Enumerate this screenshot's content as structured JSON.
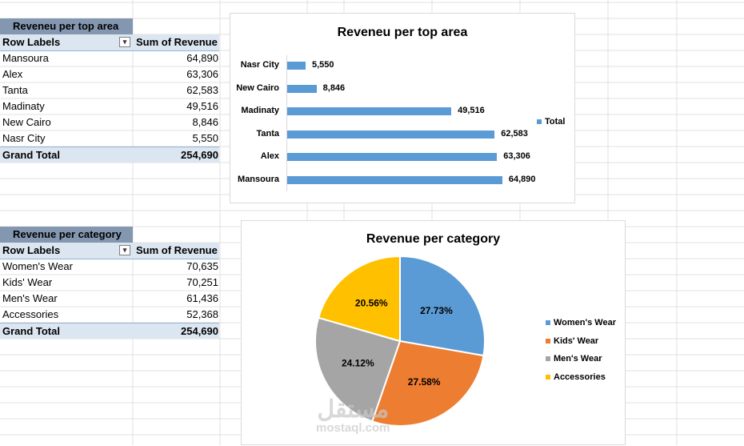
{
  "area_table": {
    "title": "Reveneu per top area",
    "header_label": "Row Labels",
    "header_value": "Sum of Revenue",
    "rows": [
      {
        "label": "Mansoura",
        "value": "64,890"
      },
      {
        "label": "Alex",
        "value": "63,306"
      },
      {
        "label": "Tanta",
        "value": "62,583"
      },
      {
        "label": "Madinaty",
        "value": "49,516"
      },
      {
        "label": "New Cairo",
        "value": "8,846"
      },
      {
        "label": "Nasr City",
        "value": "5,550"
      }
    ],
    "total_label": "Grand Total",
    "total_value": "254,690"
  },
  "category_table": {
    "title": "Revenue per category",
    "header_label": "Row Labels",
    "header_value": "Sum of Revenue",
    "rows": [
      {
        "label": "Women's Wear",
        "value": "70,635"
      },
      {
        "label": "Kids' Wear",
        "value": "70,251"
      },
      {
        "label": "Men's Wear",
        "value": "61,436"
      },
      {
        "label": "Accessories",
        "value": "52,368"
      }
    ],
    "total_label": "Grand Total",
    "total_value": "254,690"
  },
  "filter_icon": "filter-dropdown-icon",
  "chart_data": [
    {
      "type": "bar",
      "orientation": "horizontal",
      "title": "Reveneu per top area",
      "categories": [
        "Nasr City",
        "New Cairo",
        "Madinaty",
        "Tanta",
        "Alex",
        "Mansoura"
      ],
      "values": [
        5550,
        8846,
        49516,
        62583,
        63306,
        64890
      ],
      "value_labels": [
        "5,550",
        "8,846",
        "49,516",
        "62,583",
        "63,306",
        "64,890"
      ],
      "legend": [
        "Total"
      ],
      "legend_position": "right",
      "color": "#5b9bd5",
      "xlim": [
        0,
        70000
      ]
    },
    {
      "type": "pie",
      "title": "Revenue per category",
      "categories": [
        "Women's Wear",
        "Kids' Wear",
        "Men's Wear",
        "Accessories"
      ],
      "values": [
        27.73,
        27.58,
        24.12,
        20.56
      ],
      "value_labels": [
        "27.73%",
        "27.58%",
        "24.12%",
        "20.56%"
      ],
      "colors": [
        "#5b9bd5",
        "#ed7d31",
        "#a5a5a5",
        "#ffc000"
      ],
      "legend_position": "right"
    }
  ],
  "watermark": {
    "arabic": "مستقل",
    "latin": "mostaql.com"
  }
}
